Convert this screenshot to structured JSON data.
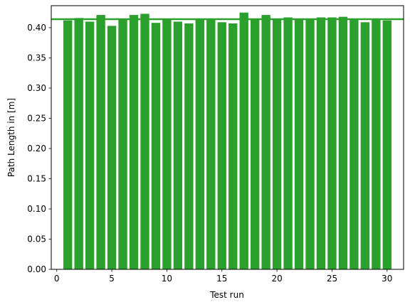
{
  "chart_data": {
    "type": "bar",
    "title": "",
    "xlabel": "Test run",
    "ylabel": "Path Length in [m]",
    "x": [
      1,
      2,
      3,
      4,
      5,
      6,
      7,
      8,
      9,
      10,
      11,
      12,
      13,
      14,
      15,
      16,
      17,
      18,
      19,
      20,
      21,
      22,
      23,
      24,
      25,
      26,
      27,
      28,
      29,
      30
    ],
    "values": [
      0.412,
      0.416,
      0.41,
      0.421,
      0.403,
      0.413,
      0.421,
      0.423,
      0.408,
      0.414,
      0.41,
      0.407,
      0.415,
      0.414,
      0.409,
      0.407,
      0.425,
      0.413,
      0.421,
      0.413,
      0.417,
      0.414,
      0.414,
      0.417,
      0.417,
      0.418,
      0.414,
      0.409,
      0.413,
      0.412
    ],
    "mean_line": 0.414,
    "xlim": [
      -0.5,
      31.5
    ],
    "ylim": [
      0,
      0.4364
    ],
    "xticks": [
      0,
      5,
      10,
      15,
      20,
      25,
      30
    ],
    "yticks": [
      0.0,
      0.05,
      0.1,
      0.15,
      0.2,
      0.25,
      0.3,
      0.35,
      0.4
    ],
    "xtick_labels": [
      "0",
      "5",
      "10",
      "15",
      "20",
      "25",
      "30"
    ],
    "ytick_labels": [
      "0.00",
      "0.05",
      "0.10",
      "0.15",
      "0.20",
      "0.25",
      "0.30",
      "0.35",
      "0.40"
    ],
    "bar_color": "#2ca02c",
    "line_color": "#2ca02c",
    "grid": false,
    "legend": "none"
  }
}
